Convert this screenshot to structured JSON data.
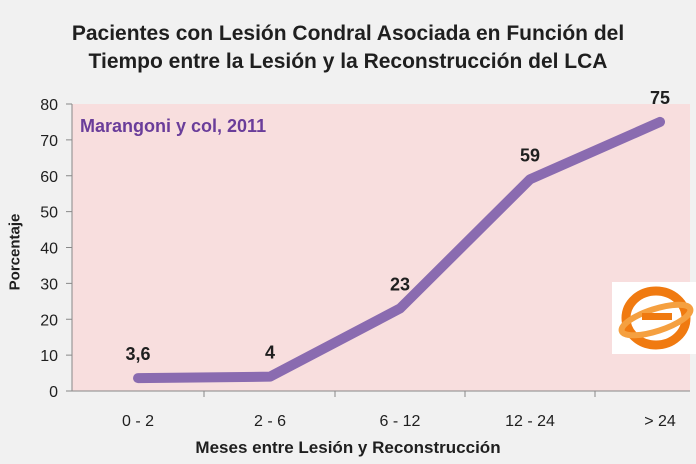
{
  "chart_data": {
    "type": "line",
    "title": [
      "Pacientes con Lesión Condral Asociada en Función del",
      "Tiempo entre la Lesión y la Reconstrucción del LCA"
    ],
    "xlabel": "Meses entre Lesión y Reconstrucción",
    "ylabel": "Porcentaje",
    "annotation": "Marangoni y col, 2011",
    "categories": [
      "0 - 2",
      "2 - 6",
      "6 - 12",
      "12 - 24",
      "> 24"
    ],
    "values": [
      3.6,
      4,
      23,
      59,
      75
    ],
    "data_labels": [
      "3,6",
      "4",
      "23",
      "59",
      "75"
    ],
    "ylim": [
      0,
      80
    ],
    "yticks": [
      0,
      10,
      20,
      30,
      40,
      50,
      60,
      70,
      80
    ],
    "grid": false,
    "legend": "none",
    "colors": {
      "line": "#8a6bb0",
      "plot_bg": "#f8dede",
      "text": "#1f1f1f",
      "annotation": "#6a3d9a"
    }
  }
}
